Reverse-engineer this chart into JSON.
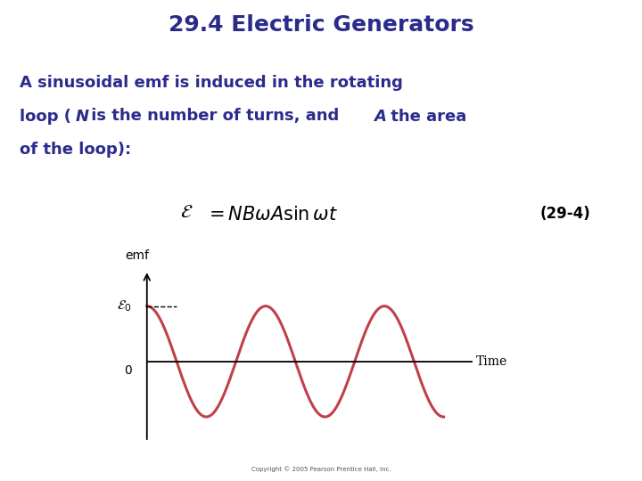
{
  "title": "29.4 Electric Generators",
  "title_color": "#2b2b8c",
  "title_fontsize": 18,
  "body_color": "#2b2b8c",
  "body_fontsize": 13,
  "equation_number": "(29-4)",
  "sine_color": "#c0404a",
  "sine_linewidth": 2.2,
  "bg_color": "#ffffff",
  "copyright_text": "Copyright © 2005 Pearson Prentice Hall, Inc.",
  "graph_ylabel": "emf",
  "graph_xlabel": "Time",
  "graph_zero_label": "0"
}
